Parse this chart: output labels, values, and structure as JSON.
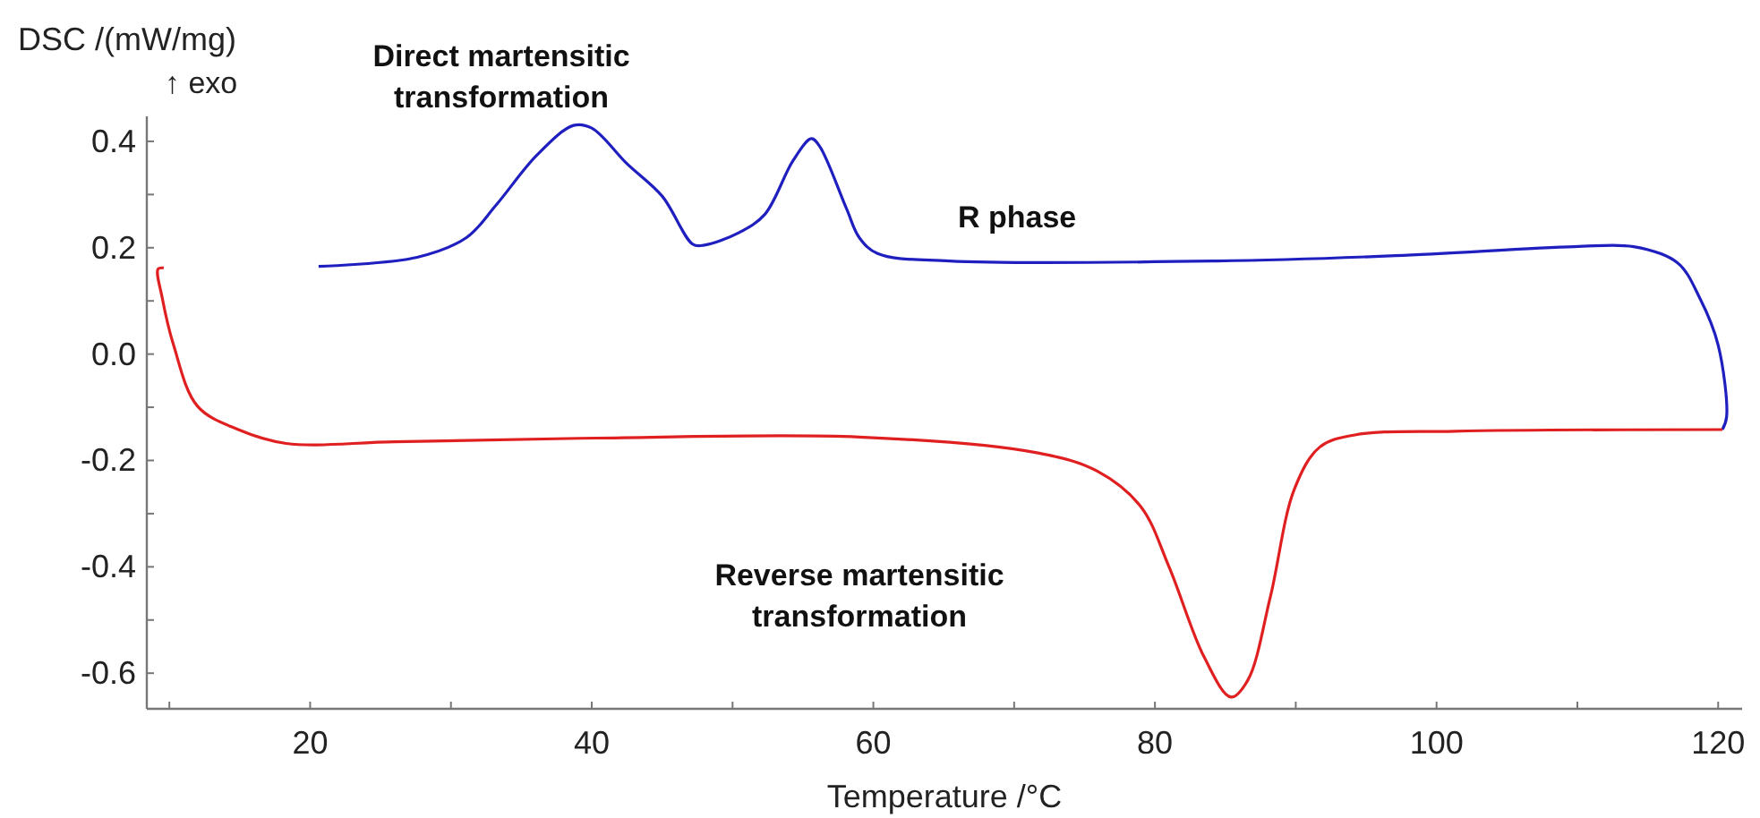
{
  "chart_data": {
    "type": "line",
    "xlabel": "Temperature /°C",
    "ylabel": "DSC /(mW/mg)\n↑ exo",
    "annotations": [
      "Direct martensitic\ntransformation",
      "R phase",
      "Reverse martensitic\ntransformation"
    ],
    "xlim": [
      8.4,
      121.7
    ],
    "ylim": [
      -0.667,
      0.447
    ],
    "xticks": [
      {
        "value": 10,
        "label": null
      },
      20,
      {
        "value": 30,
        "label": null
      },
      40,
      {
        "value": 50,
        "label": null
      },
      60,
      {
        "value": 70,
        "label": null
      },
      80,
      {
        "value": 90,
        "label": null
      },
      100,
      {
        "value": 110,
        "label": null
      },
      120
    ],
    "yticks": [
      {
        "value": -0.6,
        "label": "-0.6"
      },
      {
        "value": -0.5,
        "label": null
      },
      {
        "value": -0.4,
        "label": "-0.4"
      },
      {
        "value": -0.3,
        "label": null
      },
      {
        "value": -0.2,
        "label": "-0.2"
      },
      {
        "value": -0.1,
        "label": null
      },
      {
        "value": 0,
        "label": "0.0"
      },
      {
        "value": 0.1,
        "label": null
      },
      {
        "value": 0.2,
        "label": "0.2"
      },
      {
        "value": 0.3,
        "label": null
      },
      {
        "value": 0.4,
        "label": "0.4"
      }
    ],
    "grid": false,
    "marker": "none",
    "line_style": "solid",
    "series": [
      {
        "color": "#1f1fbf",
        "x": [
          20.6,
          27.6,
          31.1,
          33.2,
          36.1,
          38.7,
          40,
          42.5,
          45,
          47.2,
          48,
          50.5,
          52.3,
          54.3,
          55.6,
          56.2,
          58.1,
          59,
          60.3,
          65.4,
          84.4,
          97.1,
          109.8,
          114,
          117.1,
          118.7,
          120,
          120.6,
          120.3
        ],
        "values": [
          0.165,
          0.182,
          0.219,
          0.28,
          0.374,
          0.43,
          0.425,
          0.358,
          0.297,
          0.206,
          0.205,
          0.229,
          0.263,
          0.364,
          0.405,
          0.39,
          0.273,
          0.219,
          0.189,
          0.175,
          0.175,
          0.185,
          0.202,
          0.202,
          0.172,
          0.105,
          0.017,
          -0.118,
          -0.142
        ]
      },
      {
        "color": "#e02020",
        "x": [
          9.6,
          9.2,
          9.5,
          10.3,
          12,
          14.9,
          18.3,
          26,
          40.3,
          59,
          71.7,
          75.9,
          79,
          81,
          83.5,
          85.4,
          86.6,
          88.2,
          89.9,
          91.7,
          94.2,
          101.3,
          120.3
        ],
        "values": [
          0.162,
          0.16,
          0.105,
          0.017,
          -0.098,
          -0.142,
          -0.168,
          -0.165,
          -0.158,
          -0.156,
          -0.186,
          -0.22,
          -0.287,
          -0.4,
          -0.57,
          -0.645,
          -0.613,
          -0.456,
          -0.254,
          -0.175,
          -0.152,
          -0.145,
          -0.142
        ]
      }
    ]
  }
}
